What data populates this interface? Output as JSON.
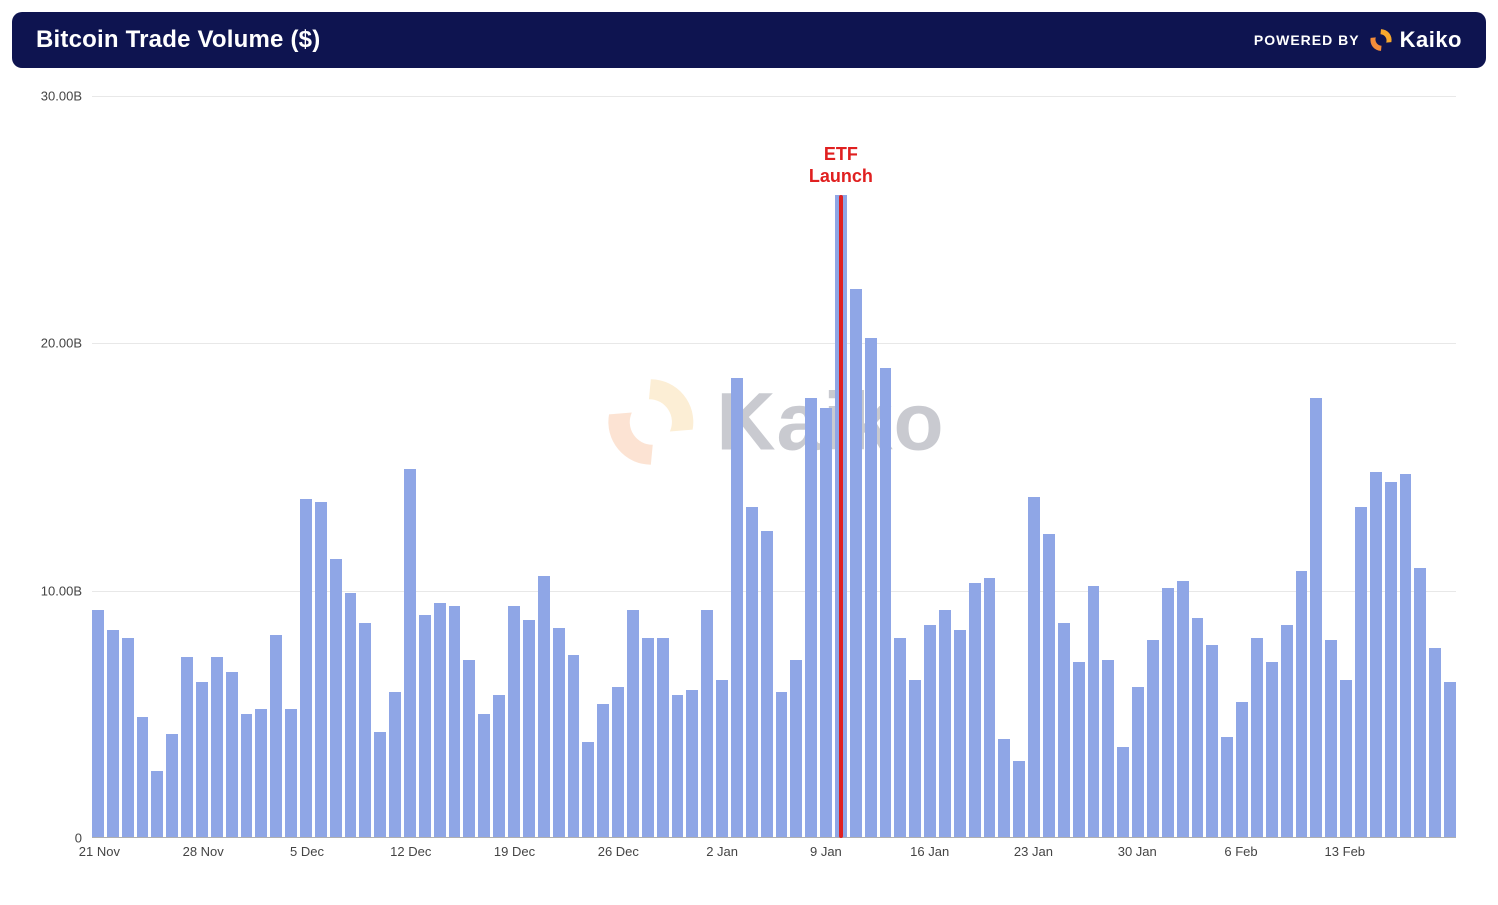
{
  "header": {
    "title": "Bitcoin Trade Volume ($)",
    "powered_by_label": "POWERED BY",
    "brand_name": "Kaiko",
    "background_color": "#0e1450",
    "text_color": "#ffffff",
    "logo_colors": {
      "segment1": "#f7a82d",
      "segment2": "#f48c3a"
    }
  },
  "chart": {
    "type": "bar",
    "background_color": "#ffffff",
    "bar_color": "#8fa6e6",
    "grid_color": "#e8e8e8",
    "axis_text_color": "#444444",
    "axis_fontsize": 13,
    "y": {
      "min": 0,
      "max": 30,
      "unit_suffix": "B",
      "ticks": [
        {
          "value": 0,
          "label": "0"
        },
        {
          "value": 10,
          "label": "10.00B"
        },
        {
          "value": 20,
          "label": "20.00B"
        },
        {
          "value": 30,
          "label": "30.00B"
        }
      ]
    },
    "x_ticks": [
      {
        "index": 0,
        "label": "21 Nov"
      },
      {
        "index": 7,
        "label": "28 Nov"
      },
      {
        "index": 14,
        "label": "5 Dec"
      },
      {
        "index": 21,
        "label": "12 Dec"
      },
      {
        "index": 28,
        "label": "19 Dec"
      },
      {
        "index": 35,
        "label": "26 Dec"
      },
      {
        "index": 42,
        "label": "2 Jan"
      },
      {
        "index": 49,
        "label": "9 Jan"
      },
      {
        "index": 56,
        "label": "16 Jan"
      },
      {
        "index": 63,
        "label": "23 Jan"
      },
      {
        "index": 70,
        "label": "30 Jan"
      },
      {
        "index": 77,
        "label": "6 Feb"
      },
      {
        "index": 84,
        "label": "13 Feb"
      }
    ],
    "values": [
      9.2,
      8.4,
      8.1,
      4.9,
      2.7,
      4.2,
      7.3,
      6.3,
      7.3,
      6.7,
      5.0,
      5.2,
      8.2,
      5.2,
      13.7,
      13.6,
      11.3,
      9.9,
      8.7,
      4.3,
      5.9,
      14.9,
      9.0,
      9.5,
      9.4,
      7.2,
      5.0,
      5.8,
      9.4,
      8.8,
      10.6,
      8.5,
      7.4,
      3.9,
      5.4,
      6.1,
      9.2,
      8.1,
      8.1,
      5.8,
      6.0,
      9.2,
      6.4,
      18.6,
      13.4,
      12.4,
      5.9,
      7.2,
      17.8,
      17.4,
      26.0,
      22.2,
      20.2,
      19.0,
      8.1,
      6.4,
      8.6,
      9.2,
      8.4,
      10.3,
      10.5,
      4.0,
      3.1,
      13.8,
      12.3,
      8.7,
      7.1,
      10.2,
      7.2,
      3.7,
      6.1,
      8.0,
      10.1,
      10.4,
      8.9,
      7.8,
      4.1,
      5.5,
      8.1,
      7.1,
      8.6,
      10.8,
      17.8,
      8.0,
      6.4,
      13.4,
      14.8,
      14.4,
      14.7,
      10.9,
      7.7,
      6.3
    ],
    "annotation": {
      "label": "ETF\nLaunch",
      "color": "#e02020",
      "bar_index": 50,
      "line_top_value": 26.0,
      "text_fontsize": 18
    },
    "watermark": {
      "text": "Kaiko",
      "text_color": "#404659",
      "opacity": 0.28,
      "logo_colors": {
        "segment1": "#f7c46b",
        "segment2": "#f59d64"
      }
    }
  }
}
